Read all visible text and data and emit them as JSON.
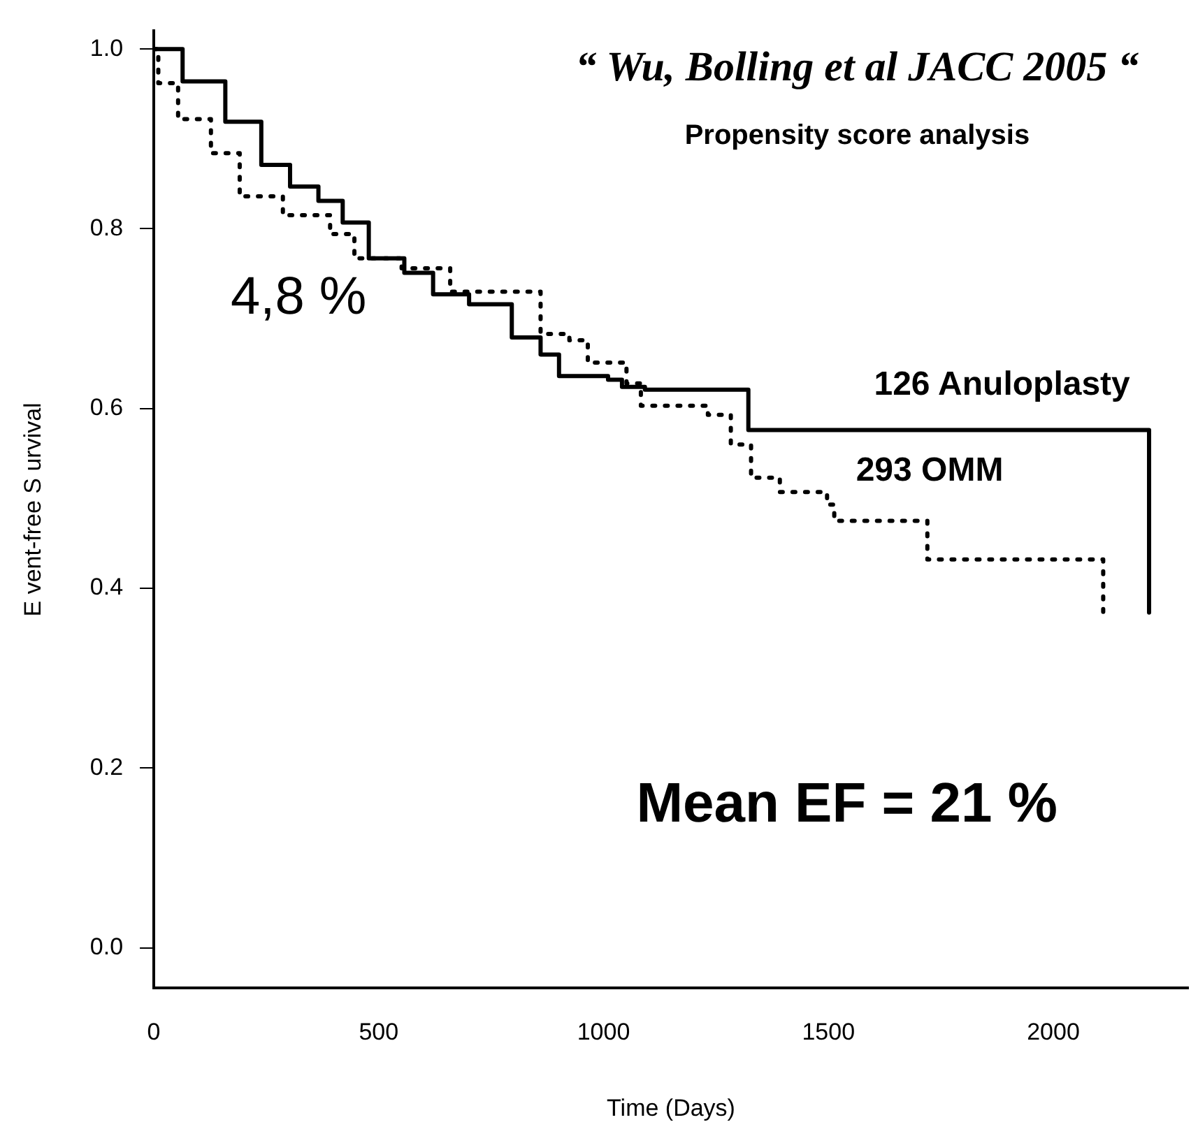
{
  "chart_data": {
    "type": "step",
    "xlabel": "Time (Days)",
    "ylabel": "E vent-free S urvival",
    "annotations": [
      "“ Wu, Bolling et al JACC 2005 “",
      "Propensity score analysis",
      "4,8 %",
      "Mean EF = 21 %"
    ],
    "xlim": [
      0,
      2300
    ],
    "xticks": [
      0,
      500,
      1000,
      1500,
      2000
    ],
    "ylim": [
      -0.045,
      1.02
    ],
    "yticks": [
      {
        "value": 0,
        "label": "0.0"
      },
      0.2,
      0.4,
      0.6,
      0.8,
      {
        "value": 1,
        "label": "1.0"
      }
    ],
    "grid": false,
    "legend": false,
    "series": [
      {
        "name": "126 Anuloplasty",
        "color": "#000000",
        "line_style": "solid",
        "x": [
          0,
          64,
          159,
          239,
          303,
          366,
          420,
          478,
          557,
          621,
          701,
          796,
          860,
          901,
          1010,
          1041,
          1092,
          1264,
          1322,
          2029,
          2213,
          2213
        ],
        "values": [
          1.0,
          0.964,
          0.919,
          0.871,
          0.847,
          0.831,
          0.807,
          0.767,
          0.751,
          0.727,
          0.716,
          0.679,
          0.66,
          0.636,
          0.632,
          0.624,
          0.621,
          0.621,
          0.576,
          0.576,
          0.485,
          0.373
        ]
      },
      {
        "name": "293 OMM",
        "color": "#000000",
        "line_style": "dotted",
        "x": [
          0,
          10,
          54,
          127,
          191,
          287,
          392,
          446,
          551,
          659,
          860,
          924,
          965,
          1051,
          1083,
          1232,
          1283,
          1328,
          1392,
          1497,
          1513,
          1704,
          1720,
          2111,
          2111
        ],
        "values": [
          1.0,
          0.962,
          0.922,
          0.884,
          0.836,
          0.815,
          0.794,
          0.767,
          0.756,
          0.73,
          0.683,
          0.676,
          0.651,
          0.628,
          0.603,
          0.593,
          0.56,
          0.523,
          0.507,
          0.493,
          0.475,
          0.475,
          0.432,
          0.432,
          0.372
        ]
      }
    ]
  }
}
